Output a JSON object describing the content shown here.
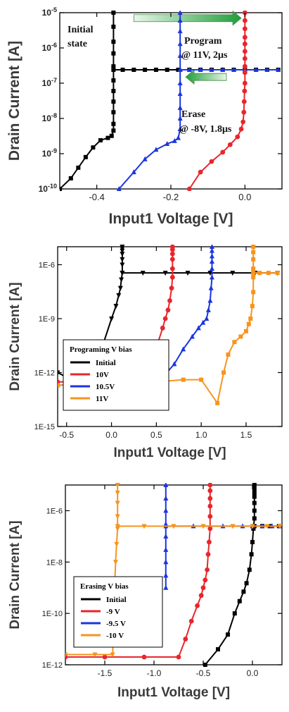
{
  "chart_data": [
    {
      "type": "line",
      "xlabel": "Input1 Voltage [V]",
      "ylabel": "Drain Current [A]",
      "xlim": [
        -0.5,
        0.1
      ],
      "ylim": [
        1e-10,
        1e-05
      ],
      "yscale": "log",
      "xticks": [
        -0.4,
        -0.2,
        0.0
      ],
      "xtick_labels": [
        "-0.4",
        "-0.2",
        "0.0"
      ],
      "yticks": [
        1e-10,
        1e-09,
        1e-08,
        1e-07,
        1e-06,
        1e-05
      ],
      "ytick_labels": [
        "10-10",
        "10-9",
        "10-8",
        "10-7",
        "10-6",
        "10-5"
      ],
      "grid": false,
      "annotations": [
        {
          "text": "Initial"
        },
        {
          "text": "state"
        },
        {
          "text": "Program"
        },
        {
          "text": "@ 11V, 2μs"
        },
        {
          "text": "Erase"
        },
        {
          "text": "@ -8V, 1.8μs"
        }
      ],
      "arrows": [
        {
          "direction": "right",
          "from_x": -0.3,
          "to_x": -0.01,
          "y": 7e-06
        },
        {
          "direction": "left",
          "from_x": -0.05,
          "to_x": -0.16,
          "y": 1.5e-07
        }
      ],
      "series": [
        {
          "color": "#000000",
          "marker": "square",
          "x": [
            -0.5,
            -0.47,
            -0.45,
            -0.43,
            -0.41,
            -0.39,
            -0.37,
            -0.36,
            -0.355,
            -0.355,
            -0.355,
            -0.355,
            -0.355,
            -0.355,
            -0.355,
            -0.355,
            -0.355,
            -0.355,
            -0.355
          ],
          "y": [
            1e-10,
            2e-10,
            4e-10,
            8e-10,
            1.5e-09,
            2.4e-09,
            2.8e-09,
            3.2e-09,
            4.5e-09,
            7e-09,
            1.5e-08,
            3e-08,
            6e-08,
            1.2e-07,
            3e-07,
            7e-07,
            1.5e-06,
            4e-06,
            1e-05
          ]
        },
        {
          "color": "#000000",
          "marker": "square",
          "x": [
            -0.355,
            -0.33,
            -0.3,
            -0.27,
            -0.24,
            -0.21,
            -0.18,
            -0.15,
            -0.12,
            -0.09,
            -0.06,
            -0.03,
            0.0,
            0.03,
            0.06,
            0.09
          ],
          "y": [
            2.4e-07,
            2.4e-07,
            2.4e-07,
            2.4e-07,
            2.4e-07,
            2.4e-07,
            2.4e-07,
            2.4e-07,
            2.4e-07,
            2.4e-07,
            2.4e-07,
            2.4e-07,
            2.4e-07,
            2.4e-07,
            2.4e-07,
            2.4e-07
          ]
        },
        {
          "color": "#1a35e0",
          "marker": "triangle-up",
          "x": [
            -0.34,
            -0.3,
            -0.27,
            -0.24,
            -0.21,
            -0.19,
            -0.18,
            -0.175,
            -0.175,
            -0.175,
            -0.175,
            -0.175,
            -0.175,
            -0.175,
            -0.175,
            -0.175,
            -0.175,
            -0.175
          ],
          "y": [
            1e-10,
            3e-10,
            7e-10,
            1.3e-09,
            1.9e-09,
            2.3e-09,
            2.8e-09,
            5e-09,
            1e-08,
            2e-08,
            5e-08,
            1e-07,
            2.5e-07,
            6e-07,
            1.3e-06,
            3e-06,
            6e-06,
            1e-05
          ]
        },
        {
          "color": "#1a35e0",
          "marker": "triangle-up",
          "x": [
            -0.175,
            -0.15,
            -0.12,
            -0.09,
            -0.06,
            -0.03,
            0.0,
            0.03,
            0.06,
            0.09
          ],
          "y": [
            2.4e-07,
            2.4e-07,
            2.4e-07,
            2.4e-07,
            2.4e-07,
            2.4e-07,
            2.4e-07,
            2.4e-07,
            2.4e-07,
            2.4e-07
          ]
        },
        {
          "color": "#e8262b",
          "marker": "circle",
          "x": [
            -0.15,
            -0.12,
            -0.09,
            -0.06,
            -0.04,
            -0.02,
            -0.01,
            -0.005,
            -0.003,
            -0.002,
            -0.001,
            0.0,
            0.0,
            0.0,
            0.0,
            0.0,
            0.0,
            0.0,
            0.0,
            0.0,
            0.0
          ],
          "y": [
            1e-10,
            3e-10,
            6e-10,
            1.1e-09,
            1.8e-09,
            3e-09,
            5e-09,
            8e-09,
            1.5e-08,
            3e-08,
            6e-08,
            1e-07,
            2e-07,
            3e-07,
            5e-07,
            8e-07,
            1.3e-06,
            2e-06,
            3.5e-06,
            6e-06,
            1e-05
          ]
        }
      ]
    },
    {
      "type": "line",
      "xlabel": "Input1 Voltage [V]",
      "ylabel": "Drain Current [A]",
      "xlim": [
        -0.6,
        1.9
      ],
      "ylim": [
        1e-15,
        1e-05
      ],
      "yscale": "log",
      "xticks": [
        -0.5,
        0.0,
        0.5,
        1.0,
        1.5
      ],
      "xtick_labels": [
        "-0.5",
        "0.0",
        "0.5",
        "1.0",
        "1.5"
      ],
      "yticks": [
        1e-15,
        1e-12,
        1e-09,
        1e-06
      ],
      "ytick_labels": [
        "1E-15",
        "1E-12",
        "1E-9",
        "1E-6"
      ],
      "grid": false,
      "legend": {
        "title": "Programing V bias",
        "placement": "lower-left",
        "entries": [
          "Initial",
          "10V",
          "10.5V",
          "11V"
        ]
      },
      "series": [
        {
          "name": "Initial",
          "color": "#000000",
          "marker": "triangle-down",
          "x": [
            -0.6,
            -0.4,
            -0.2,
            -0.1,
            0.0,
            0.05,
            0.08,
            0.1,
            0.11,
            0.12,
            0.12,
            0.12,
            0.12,
            0.12,
            0.12,
            0.12
          ],
          "y": [
            1e-12,
            3e-13,
            1e-12,
            3e-11,
            1e-09,
            5e-09,
            2e-08,
            5e-08,
            1.5e-07,
            3.5e-07,
            1e-06,
            2e-06,
            4e-06,
            6e-06,
            8e-06,
            1e-05
          ]
        },
        {
          "name": "Initial",
          "color": "#000000",
          "marker": "triangle-down",
          "x": [
            0.12,
            0.35,
            0.6,
            0.85,
            1.1,
            1.35,
            1.6,
            1.85
          ],
          "y": [
            3.5e-07,
            3.5e-07,
            3.5e-07,
            3.5e-07,
            3.5e-07,
            3.5e-07,
            3.5e-07,
            3.5e-07
          ]
        },
        {
          "name": "10V",
          "color": "#e8262b",
          "marker": "circle",
          "x": [
            -0.6,
            -0.4,
            -0.2,
            0.0,
            0.2,
            0.35,
            0.45,
            0.52,
            0.57,
            0.6,
            0.63,
            0.65,
            0.67,
            0.68,
            0.68,
            0.68,
            0.68,
            0.68,
            0.68
          ],
          "y": [
            3e-13,
            3e-13,
            3e-13,
            3e-13,
            3e-13,
            5e-13,
            3e-12,
            5e-11,
            3e-10,
            1e-09,
            3e-09,
            1e-08,
            5e-08,
            2e-07,
            6e-07,
            2e-06,
            4e-06,
            7e-06,
            1e-05
          ]
        },
        {
          "name": "10.5V",
          "color": "#1a35e0",
          "marker": "triangle-up",
          "x": [
            -0.6,
            -0.2,
            0.2,
            0.45,
            0.6,
            0.7,
            0.8,
            0.9,
            0.97,
            1.02,
            1.06,
            1.08,
            1.1,
            1.11,
            1.12,
            1.12,
            1.12,
            1.12,
            1.12,
            1.12
          ],
          "y": [
            2e-13,
            2e-13,
            2e-13,
            2e-13,
            8e-13,
            3e-12,
            2e-11,
            1e-10,
            3e-10,
            6e-10,
            1e-09,
            3e-09,
            1e-08,
            5e-08,
            2e-07,
            6e-07,
            1.5e-06,
            3e-06,
            6e-06,
            1e-05
          ]
        },
        {
          "name": "11V",
          "color": "#f7941d",
          "marker": "square",
          "x": [
            -0.6,
            -0.2,
            0.2,
            0.5,
            0.8,
            1.0,
            1.18,
            1.25,
            1.3,
            1.37,
            1.44,
            1.5,
            1.53,
            1.55,
            1.57,
            1.58,
            1.58,
            1.58,
            1.58,
            1.58,
            1.58
          ],
          "y": [
            2e-13,
            2e-13,
            2e-13,
            3e-13,
            4e-13,
            4e-13,
            2e-14,
            1e-12,
            1e-11,
            5e-11,
            1e-10,
            2e-10,
            5e-10,
            1e-09,
            5e-09,
            3e-08,
            2e-07,
            6e-07,
            2e-06,
            5e-06,
            1e-05
          ]
        },
        {
          "name": "11V",
          "color": "#f7941d",
          "marker": "square",
          "x": [
            1.58,
            1.65,
            1.75,
            1.85
          ],
          "y": [
            3.5e-07,
            3.5e-07,
            3.5e-07,
            3.5e-07
          ]
        }
      ]
    },
    {
      "type": "line",
      "xlabel": "Input1 Voltage [V]",
      "ylabel": "Drain Current [A]",
      "xlim": [
        -1.9,
        0.3
      ],
      "ylim": [
        1e-12,
        1e-05
      ],
      "yscale": "log",
      "xticks": [
        -1.5,
        -1.0,
        -0.5,
        0.0
      ],
      "xtick_labels": [
        "-1.5",
        "-1.0",
        "-0.5",
        "0.0"
      ],
      "yticks": [
        1e-12,
        1e-10,
        1e-08,
        1e-06
      ],
      "ytick_labels": [
        "1E-12",
        "1E-10",
        "1E-8",
        "1E-6"
      ],
      "grid": false,
      "legend": {
        "title": "Erasing V bias",
        "placement": "lower-left",
        "entries": [
          "Initial",
          "-9 V",
          "-9.5 V",
          "-10 V"
        ]
      },
      "series": [
        {
          "name": "Initial",
          "color": "#000000",
          "marker": "square",
          "x": [
            -0.48,
            -0.35,
            -0.25,
            -0.18,
            -0.13,
            -0.09,
            -0.06,
            -0.03,
            -0.01,
            0.0,
            0.01,
            0.02,
            0.02,
            0.02,
            0.02,
            0.02,
            0.02,
            0.02
          ],
          "y": [
            1e-12,
            4e-12,
            1.5e-11,
            1e-10,
            3e-10,
            7e-10,
            1.5e-09,
            5e-09,
            2e-08,
            6e-08,
            2e-07,
            5e-07,
            1e-06,
            2e-06,
            3.5e-06,
            5e-06,
            7e-06,
            1e-05
          ]
        },
        {
          "name": "Initial",
          "color": "#000000",
          "marker": "square",
          "x": [
            0.02,
            0.1,
            0.18,
            0.27
          ],
          "y": [
            2.5e-07,
            2.5e-07,
            2.5e-07,
            2.5e-07
          ]
        },
        {
          "name": "-9 V",
          "color": "#e8262b",
          "marker": "circle",
          "x": [
            -1.9,
            -1.5,
            -1.1,
            -0.75,
            -0.68,
            -0.62,
            -0.56,
            -0.52,
            -0.5,
            -0.48,
            -0.46,
            -0.45,
            -0.44,
            -0.43,
            -0.43,
            -0.43,
            -0.43,
            -0.43,
            -0.43
          ],
          "y": [
            2e-12,
            2e-12,
            2e-12,
            2e-12,
            1e-11,
            5e-11,
            2e-10,
            5e-10,
            1e-09,
            2e-09,
            5e-09,
            2e-08,
            6e-08,
            2e-07,
            6e-07,
            1.5e-06,
            3e-06,
            6e-06,
            1e-05
          ]
        },
        {
          "name": "-9.5 V",
          "color": "#1a35e0",
          "marker": "triangle-up",
          "x": [
            -0.88,
            -0.88,
            -0.88,
            -0.88,
            -0.88,
            -0.88,
            -0.88,
            -0.88,
            -0.88
          ],
          "y": [
            1e-09,
            3e-09,
            1e-08,
            3e-08,
            1e-07,
            3e-07,
            1e-06,
            3e-06,
            1e-05
          ]
        },
        {
          "name": "-9.5 V",
          "color": "#1a35e0",
          "marker": "triangle-up",
          "x": [
            -0.88,
            -0.6,
            -0.3,
            -0.1,
            0.0,
            0.1,
            0.2,
            0.28
          ],
          "y": [
            2.5e-07,
            2.5e-07,
            2.5e-07,
            2.5e-07,
            2.5e-07,
            2.5e-07,
            2.5e-07,
            2.5e-07
          ]
        },
        {
          "name": "-10 V",
          "color": "#f7941d",
          "marker": "triangle-down",
          "x": [
            -1.9,
            -1.6,
            -1.42,
            -1.41,
            -1.4,
            -1.39,
            -1.38,
            -1.37,
            -1.37,
            -1.37,
            -1.37,
            -1.37
          ],
          "y": [
            2.5e-12,
            2.5e-12,
            2.5e-12,
            5e-11,
            1e-09,
            1e-08,
            5e-08,
            2e-07,
            6e-07,
            2e-06,
            5e-06,
            1e-05
          ]
        },
        {
          "name": "-10 V",
          "color": "#f7941d",
          "marker": "triangle-down",
          "x": [
            -1.37,
            -1.1,
            -0.8,
            -0.5,
            -0.2,
            0.0,
            0.15,
            0.28
          ],
          "y": [
            2.5e-07,
            2.5e-07,
            2.5e-07,
            2.5e-07,
            2.5e-07,
            2.5e-07,
            2.5e-07,
            2.5e-07
          ]
        }
      ]
    }
  ]
}
